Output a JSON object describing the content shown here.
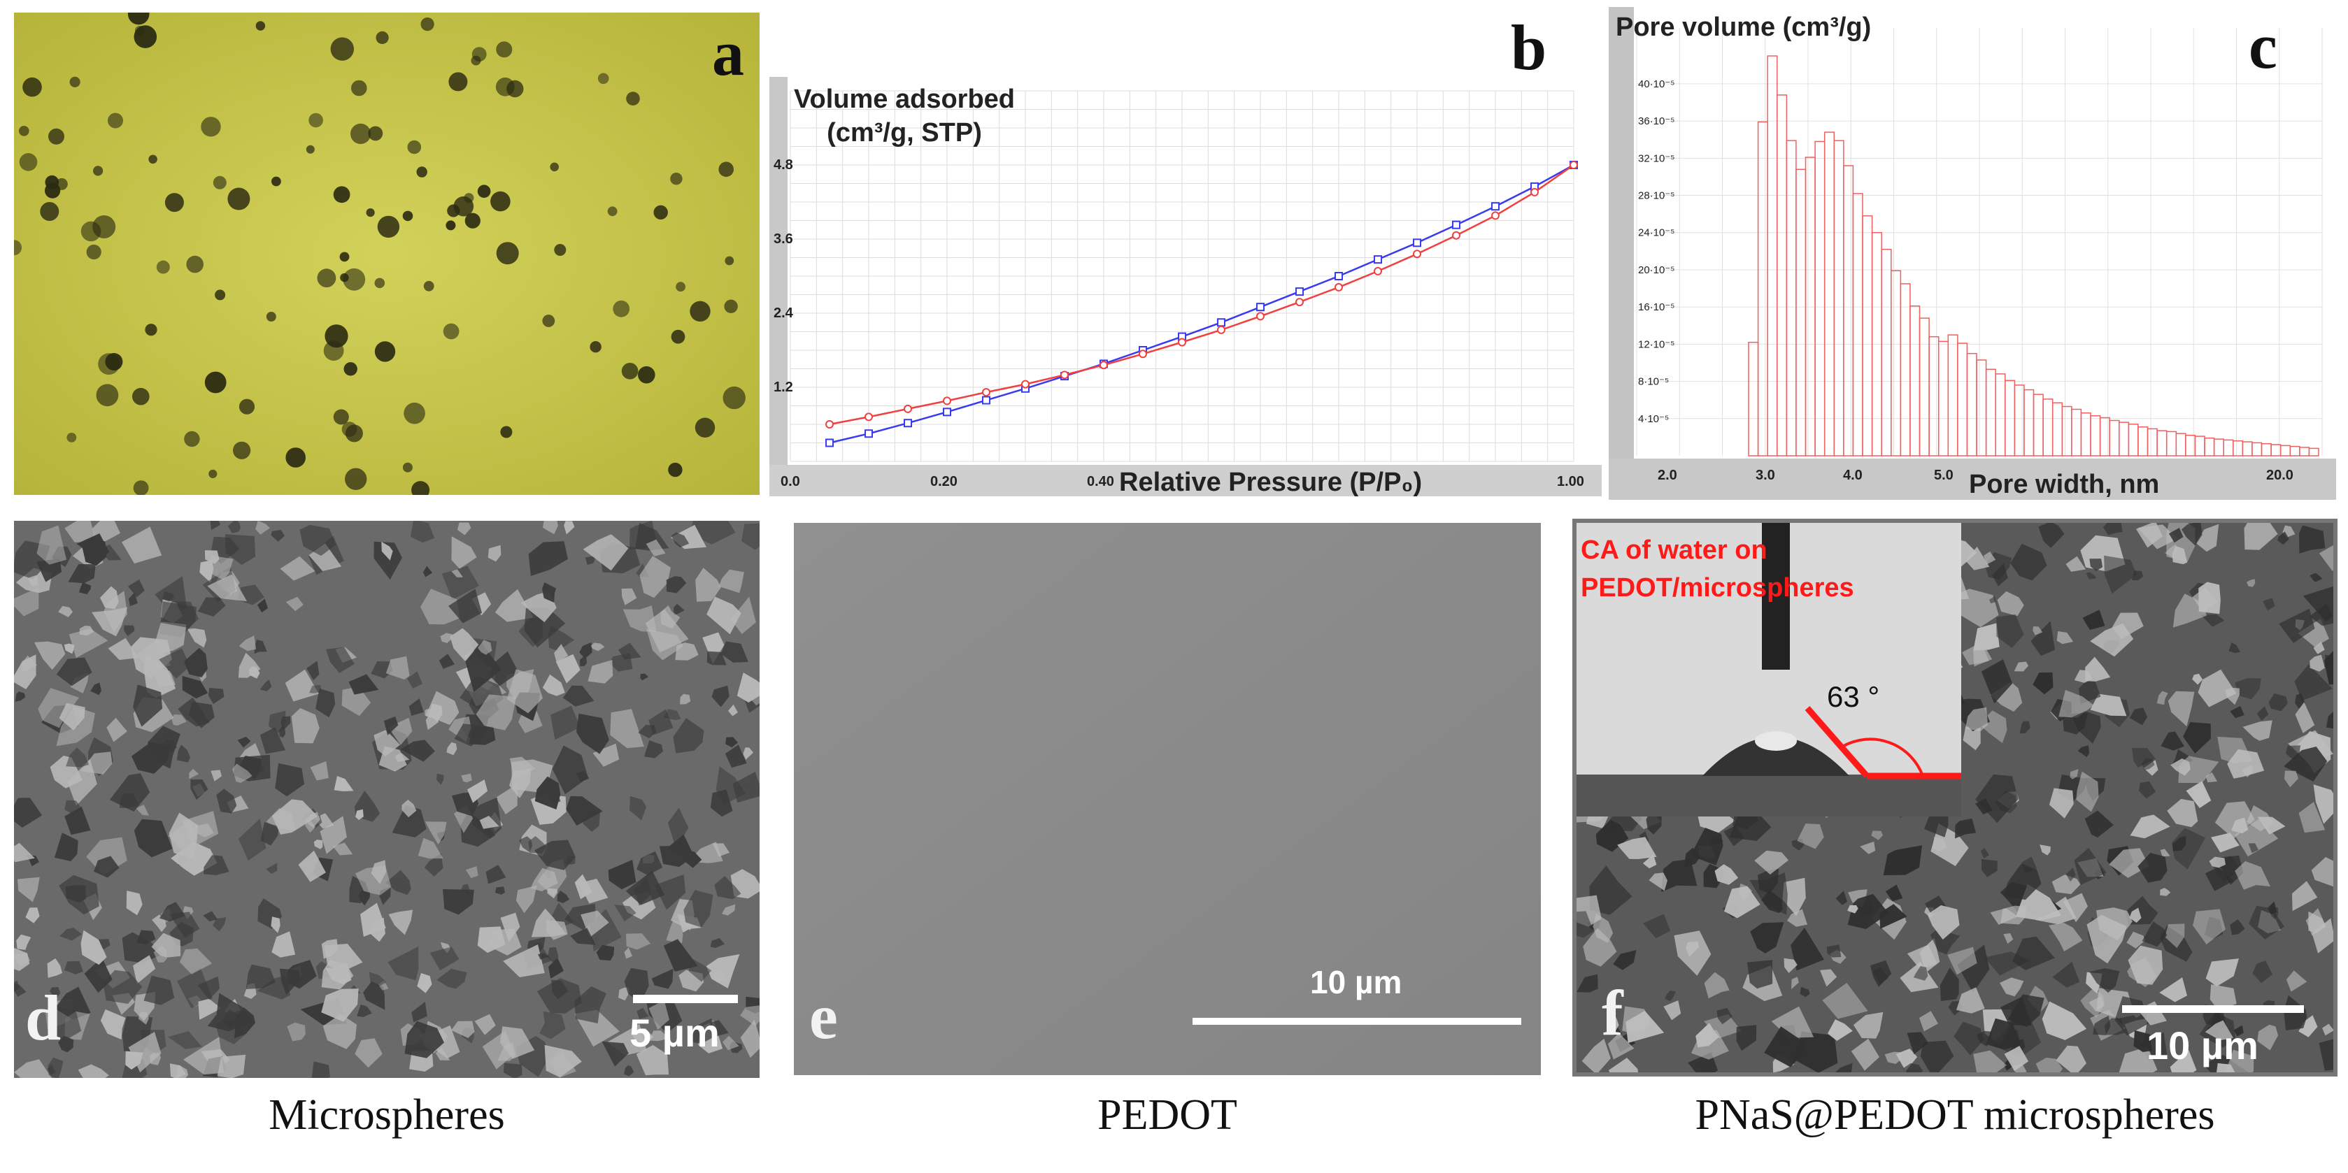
{
  "panels": {
    "a": {
      "letter": "a"
    },
    "b": {
      "letter": "b",
      "ylabel_line1": "Volume adsorbed",
      "ylabel_line2": "(cm³/g, STP)",
      "xlabel": "Relative Pressure (P/P₀)"
    },
    "c": {
      "letter": "c",
      "ylabel": "Pore volume (cm³/g)",
      "xlabel": "Pore width, nm"
    },
    "d": {
      "letter": "d",
      "scale": "5 µm",
      "caption": "Microspheres"
    },
    "e": {
      "letter": "e",
      "scale": "10 µm",
      "caption": "PEDOT"
    },
    "f": {
      "letter": "f",
      "scale": "10 µm",
      "caption": "PNaS@PEDOT microspheres",
      "inset_line1": "CA of water on",
      "inset_line2": "PEDOT/microspheres",
      "angle": "63 °"
    }
  },
  "colors": {
    "adsorption": "#3a3af0",
    "desorption": "#f04040",
    "histogram": "#f06060",
    "inset_text": "#ff1a1a",
    "micrograph_yellow": "#c9c843"
  },
  "chart_data": [
    {
      "type": "line",
      "panel": "b",
      "xlabel": "Relative Pressure (P/P₀)",
      "ylabel": "Volume adsorbed (cm³/g, STP)",
      "xlim": [
        0.0,
        1.0
      ],
      "ylim": [
        0,
        6
      ],
      "x_ticks": [
        "0.0",
        "0.20",
        "0.40",
        "1.00"
      ],
      "y_ticks": [
        "1.2",
        "2.4",
        "3.6",
        "4.8"
      ],
      "grid": true,
      "series": [
        {
          "color": "#3a3af0",
          "x": [
            0.05,
            0.1,
            0.15,
            0.2,
            0.25,
            0.3,
            0.35,
            0.4,
            0.45,
            0.5,
            0.55,
            0.6,
            0.65,
            0.7,
            0.75,
            0.8,
            0.85,
            0.9,
            0.95,
            1.0
          ],
          "y": [
            0.3,
            0.45,
            0.62,
            0.8,
            0.99,
            1.18,
            1.38,
            1.58,
            1.8,
            2.02,
            2.25,
            2.5,
            2.75,
            3.0,
            3.27,
            3.54,
            3.83,
            4.13,
            4.45,
            4.8
          ]
        },
        {
          "color": "#f04040",
          "x": [
            0.05,
            0.1,
            0.15,
            0.2,
            0.25,
            0.3,
            0.35,
            0.4,
            0.45,
            0.5,
            0.55,
            0.6,
            0.65,
            0.7,
            0.75,
            0.8,
            0.85,
            0.9,
            0.95,
            1.0
          ],
          "y": [
            0.6,
            0.72,
            0.85,
            0.98,
            1.12,
            1.25,
            1.4,
            1.56,
            1.74,
            1.93,
            2.13,
            2.35,
            2.58,
            2.82,
            3.08,
            3.36,
            3.66,
            3.98,
            4.36,
            4.8
          ]
        }
      ]
    },
    {
      "type": "bar",
      "panel": "c",
      "xlabel": "Pore width, nm",
      "ylabel": "Pore volume (cm³/g)",
      "x_ticks": [
        "2.0",
        "3.0",
        "4.0",
        "5.0",
        "20.0"
      ],
      "y_ticks": [
        "4·10⁻⁵",
        "8·10⁻⁵",
        "12·10⁻⁵",
        "16·10⁻⁵",
        "20·10⁻⁵",
        "24·10⁻⁵",
        "28·10⁻⁵",
        "32·10⁻⁵",
        "36·10⁻⁵",
        "40·10⁻⁵"
      ],
      "ylim": [
        0,
        0.00043
      ],
      "grid": true,
      "values": [
        0.000122,
        0.000359,
        0.00043,
        0.000388,
        0.000339,
        0.000308,
        0.000321,
        0.000338,
        0.000348,
        0.000339,
        0.000312,
        0.000282,
        0.000258,
        0.00024,
        0.000222,
        0.000199,
        0.000185,
        0.000161,
        0.000148,
        0.000128,
        0.000123,
        0.00013,
        0.000121,
        0.00011,
        0.000103,
        9.3e-05,
        8.8e-05,
        8.1e-05,
        7.6e-05,
        7.1e-05,
        6.6e-05,
        6.1e-05,
        5.7e-05,
        5.3e-05,
        5e-05,
        4.6e-05,
        4.3e-05,
        4.1e-05,
        3.8e-05,
        3.6e-05,
        3.4e-05,
        3.1e-05,
        2.9e-05,
        2.7e-05,
        2.6e-05,
        2.4e-05,
        2.2e-05,
        2.1e-05,
        1.9e-05,
        1.8e-05,
        1.7e-05,
        1.6e-05,
        1.5e-05,
        1.4e-05,
        1.3e-05,
        1.2e-05,
        1.1e-05,
        1e-05,
        9e-06,
        8e-06
      ]
    }
  ]
}
